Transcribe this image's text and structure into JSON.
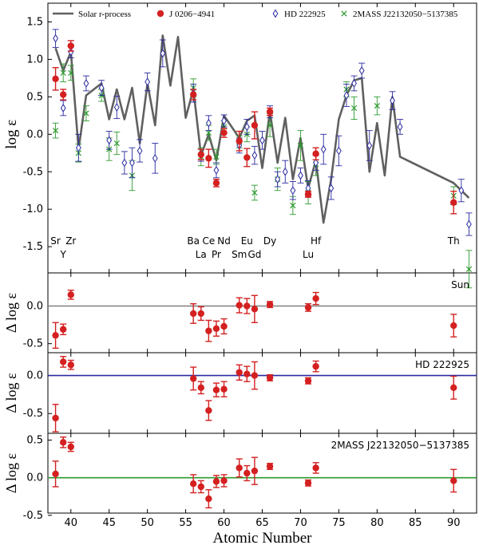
{
  "colors": {
    "solar": "#606060",
    "j0206": "#d42020",
    "hd": "#2a2aa0",
    "mass": "#2e9a2e",
    "ref_sun": "#808080",
    "ref_hd": "#2a2aa0",
    "ref_mass": "#2e9a2e"
  },
  "chart_data": {
    "type": "scatter",
    "xlabel": "Atomic Number",
    "xlim": [
      37,
      93
    ],
    "x_ticks": [
      40,
      45,
      50,
      55,
      60,
      65,
      70,
      75,
      80,
      85,
      90
    ],
    "legend": {
      "position": "top",
      "entries": [
        {
          "label": "Solar r-process",
          "marker": "line",
          "series": "solar"
        },
        {
          "label": "J 0206−4941",
          "marker": "filled-circle",
          "series": "j0206"
        },
        {
          "label": "HD 222925",
          "marker": "open-diamond",
          "series": "hd"
        },
        {
          "label": "2MASS J22132050−5137385",
          "marker": "x",
          "series": "mass"
        }
      ]
    },
    "top": {
      "ylabel": "log ε",
      "ylim": [
        -1.85,
        1.75
      ],
      "y_ticks": [
        -1.5,
        -1.0,
        -0.5,
        0.0,
        0.5,
        1.0,
        1.5
      ],
      "element_labels_row1": [
        {
          "text": "Sr",
          "x": 38
        },
        {
          "text": "Zr",
          "x": 40
        },
        {
          "text": "Ba",
          "x": 56
        },
        {
          "text": "Ce",
          "x": 58
        },
        {
          "text": "Nd",
          "x": 60
        },
        {
          "text": "Eu",
          "x": 63
        },
        {
          "text": "Dy",
          "x": 66
        },
        {
          "text": "Hf",
          "x": 72
        },
        {
          "text": "Th",
          "x": 90
        }
      ],
      "element_labels_row2": [
        {
          "text": "Y",
          "x": 39
        },
        {
          "text": "La",
          "x": 57
        },
        {
          "text": "Pr",
          "x": 59
        },
        {
          "text": "Sm",
          "x": 62
        },
        {
          "text": "Gd",
          "x": 64
        },
        {
          "text": "Lu",
          "x": 71
        }
      ],
      "solar_x": [
        38,
        39,
        40,
        41,
        42,
        44,
        45,
        46,
        47,
        48,
        49,
        50,
        51,
        52,
        53,
        54,
        55,
        56,
        57,
        58,
        59,
        60,
        62,
        63,
        64,
        65,
        66,
        67,
        68,
        69,
        70,
        71,
        72,
        73,
        74,
        75,
        76,
        77,
        78,
        79,
        80,
        81,
        82,
        83,
        90,
        92
      ],
      "solar_y": [
        1.15,
        0.85,
        1.1,
        -0.2,
        0.52,
        0.68,
        0.2,
        0.6,
        0.2,
        0.62,
        -0.12,
        0.68,
        0.12,
        1.32,
        0.65,
        1.3,
        0.22,
        0.6,
        -0.28,
        0.0,
        -0.35,
        0.25,
        -0.05,
        0.18,
        0.25,
        -0.45,
        0.3,
        -0.38,
        0.22,
        -0.6,
        -0.05,
        -0.72,
        -0.35,
        -1.18,
        -0.6,
        0.2,
        0.52,
        0.72,
        0.75,
        -0.5,
        0.15,
        -0.55,
        0.5,
        -0.3,
        -0.65,
        -0.85
      ],
      "j0206": {
        "x": [
          38,
          39,
          40,
          56,
          57,
          58,
          59,
          60,
          62,
          63,
          64,
          66,
          71,
          72,
          90
        ],
        "y": [
          0.74,
          0.53,
          1.18,
          0.53,
          -0.27,
          -0.32,
          -0.65,
          0.02,
          -0.09,
          -0.31,
          0.12,
          0.3,
          -0.8,
          -0.26,
          -0.91
        ],
        "err": [
          0.15,
          0.07,
          0.07,
          0.07,
          0.07,
          0.12,
          0.05,
          0.06,
          0.13,
          0.12,
          0.18,
          0.05,
          0.04,
          0.08,
          0.15
        ]
      },
      "hd": {
        "x": [
          38,
          39,
          40,
          41,
          42,
          44,
          45,
          46,
          47,
          48,
          49,
          50,
          51,
          52,
          56,
          57,
          58,
          59,
          60,
          62,
          63,
          64,
          65,
          66,
          67,
          68,
          69,
          70,
          71,
          72,
          73,
          74,
          75,
          76,
          77,
          78,
          79,
          82,
          83,
          91,
          92
        ],
        "y": [
          1.28,
          0.35,
          1.1,
          -0.18,
          0.68,
          0.62,
          -0.08,
          0.36,
          -0.38,
          -0.38,
          -0.22,
          0.7,
          -0.32,
          1.08,
          0.55,
          -0.28,
          0.15,
          -0.48,
          0.18,
          -0.15,
          0.1,
          -0.28,
          -0.08,
          0.3,
          -0.6,
          -0.5,
          -0.75,
          -0.55,
          -0.72,
          -0.38,
          -0.2,
          -0.72,
          -0.22,
          0.52,
          0.68,
          0.85,
          -0.15,
          0.45,
          0.1,
          -0.75,
          -1.2
        ],
        "err": [
          0.12,
          0.1,
          0.08,
          0.18,
          0.1,
          0.1,
          0.12,
          0.15,
          0.15,
          0.2,
          0.15,
          0.12,
          0.2,
          0.18,
          0.12,
          0.08,
          0.1,
          0.1,
          0.08,
          0.1,
          0.1,
          0.12,
          0.12,
          0.08,
          0.1,
          0.15,
          0.12,
          0.1,
          0.1,
          0.1,
          0.2,
          0.15,
          0.2,
          0.15,
          0.1,
          0.1,
          0.2,
          0.12,
          0.1,
          0.15,
          0.15
        ]
      },
      "mass": {
        "x": [
          38,
          39,
          40,
          41,
          42,
          44,
          45,
          46,
          48,
          56,
          57,
          58,
          59,
          60,
          62,
          63,
          64,
          66,
          67,
          69,
          70,
          71,
          72,
          76,
          77,
          80,
          90,
          92
        ],
        "y": [
          0.05,
          0.82,
          0.82,
          -0.25,
          0.28,
          0.52,
          -0.2,
          -0.12,
          -0.55,
          0.62,
          -0.3,
          0.02,
          -0.3,
          0.1,
          -0.1,
          0.0,
          -0.78,
          0.12,
          -0.6,
          -0.95,
          -0.15,
          -0.78,
          -0.4,
          0.6,
          0.35,
          0.38,
          -0.82,
          -1.8
        ],
        "err": [
          0.1,
          0.12,
          0.1,
          0.12,
          0.1,
          0.08,
          0.15,
          0.15,
          0.2,
          0.12,
          0.12,
          0.1,
          0.1,
          0.08,
          0.08,
          0.1,
          0.1,
          0.15,
          0.15,
          0.12,
          0.2,
          0.15,
          0.15,
          0.1,
          0.15,
          0.12,
          0.12,
          0.25
        ]
      }
    },
    "residual_x": [
      38,
      39,
      40,
      56,
      57,
      58,
      59,
      60,
      62,
      63,
      64,
      66,
      71,
      72,
      90
    ],
    "residuals": [
      {
        "label": "Sun",
        "ylabel": "Δ log ε",
        "ref_color": "ref_sun",
        "ylim": [
          -0.62,
          0.44
        ],
        "y_ticks": [
          -0.5,
          0.0
        ],
        "y": [
          -0.39,
          -0.31,
          0.15,
          -0.1,
          -0.1,
          -0.33,
          -0.3,
          -0.27,
          0.01,
          0.0,
          -0.04,
          0.02,
          -0.02,
          0.1,
          -0.26
        ],
        "err": [
          0.17,
          0.07,
          0.06,
          0.13,
          0.09,
          0.14,
          0.1,
          0.1,
          0.1,
          0.1,
          0.18,
          0.04,
          0.05,
          0.08,
          0.15
        ]
      },
      {
        "label": "HD 222925",
        "ylabel": "Δ log ε",
        "ref_color": "ref_hd",
        "ylim": [
          -0.76,
          0.3
        ],
        "y_ticks": [
          -0.5,
          0.0
        ],
        "y": [
          -0.56,
          0.18,
          0.14,
          -0.04,
          -0.16,
          -0.46,
          -0.19,
          -0.18,
          0.04,
          0.02,
          0.0,
          -0.03,
          -0.07,
          0.12,
          -0.16
        ],
        "err": [
          0.18,
          0.07,
          0.06,
          0.15,
          0.08,
          0.13,
          0.09,
          0.1,
          0.1,
          0.1,
          0.18,
          0.04,
          0.04,
          0.07,
          0.15
        ]
      },
      {
        "label": "2MASS J22132050−5137385",
        "ylabel": "Δ log ε",
        "ref_color": "ref_mass",
        "ylim": [
          -0.47,
          0.59
        ],
        "y_ticks": [
          -0.5,
          0.0,
          0.5
        ],
        "y": [
          0.05,
          0.47,
          0.41,
          -0.08,
          -0.12,
          -0.28,
          -0.05,
          -0.04,
          0.13,
          0.06,
          0.09,
          0.15,
          -0.07,
          0.13,
          -0.04
        ],
        "err": [
          0.17,
          0.07,
          0.06,
          0.12,
          0.08,
          0.12,
          0.08,
          0.08,
          0.12,
          0.1,
          0.18,
          0.04,
          0.04,
          0.07,
          0.15
        ]
      }
    ]
  }
}
